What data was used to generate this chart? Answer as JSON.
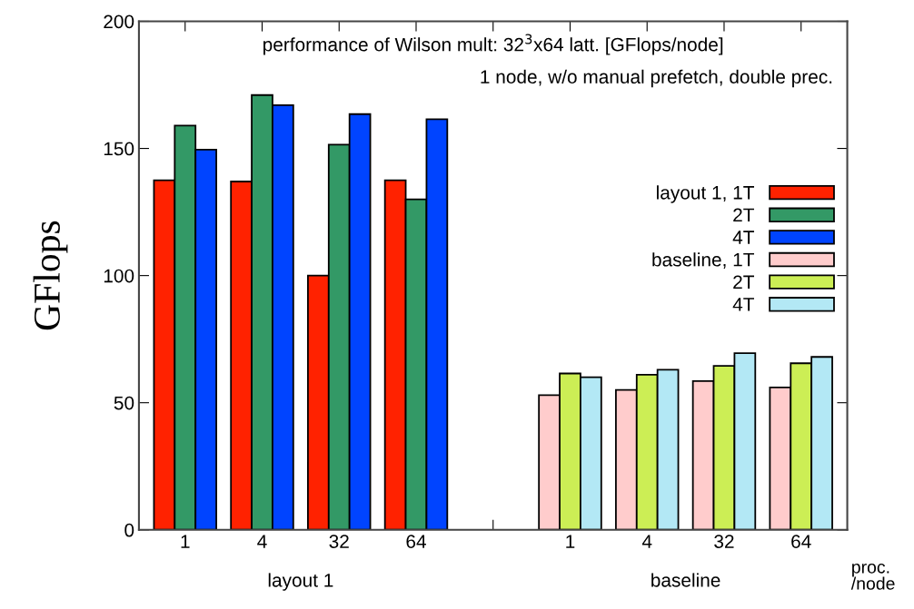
{
  "chart_data": {
    "type": "bar",
    "ylabel": "GFlops",
    "categories": [
      "1",
      "4",
      "32",
      "64",
      null,
      "1",
      "4",
      "32",
      "64"
    ],
    "series": [
      {
        "name": "layout 1, 1T",
        "color": "#ff2200",
        "values": [
          137.5,
          137,
          100,
          137.5,
          null,
          null,
          null,
          null,
          null
        ]
      },
      {
        "name": "2T",
        "color": "#339966",
        "values": [
          159,
          171,
          151.5,
          130,
          null,
          null,
          null,
          null,
          null
        ]
      },
      {
        "name": "4T",
        "color": "#0044ff",
        "values": [
          149.5,
          167,
          163.5,
          161.5,
          null,
          null,
          null,
          null,
          null
        ]
      },
      {
        "name": "baseline, 1T",
        "color": "#ffcccc",
        "values": [
          null,
          null,
          null,
          null,
          null,
          53,
          55,
          58.5,
          56
        ]
      },
      {
        "name": "2T",
        "color": "#ccee55",
        "values": [
          null,
          null,
          null,
          null,
          null,
          61.5,
          61,
          64.5,
          65.5
        ]
      },
      {
        "name": "4T",
        "color": "#b3e8f5",
        "values": [
          null,
          null,
          null,
          null,
          null,
          60,
          63,
          69.5,
          68
        ]
      }
    ],
    "ylim": [
      0,
      200
    ],
    "yticks": [
      0,
      50,
      100,
      150,
      200
    ],
    "grid": false,
    "legend": "right",
    "annotations": [
      {
        "text": "performance of Wilson mult: 32$^{3}$x64 latt. [GFlops/node]"
      },
      {
        "text": "1 node, w/o manual prefetch, double prec."
      },
      {
        "text": "layout 1"
      },
      {
        "text": "baseline"
      },
      {
        "text": "proc.\n/node"
      }
    ]
  }
}
